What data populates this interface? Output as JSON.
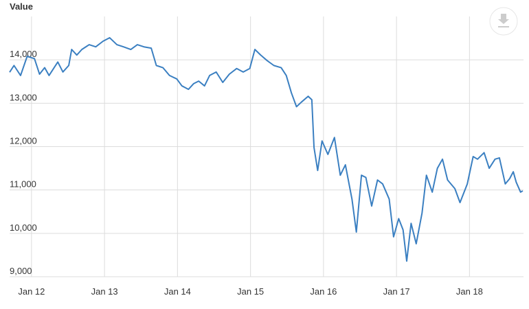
{
  "chart_data": {
    "type": "line",
    "title": "Value",
    "x": [
      2011.7,
      2011.76,
      2011.85,
      2011.94,
      2012.04,
      2012.11,
      2012.18,
      2012.24,
      2012.36,
      2012.43,
      2012.51,
      2012.55,
      2012.62,
      2012.69,
      2012.79,
      2012.88,
      2012.98,
      2013.07,
      2013.17,
      2013.26,
      2013.36,
      2013.45,
      2013.54,
      2013.64,
      2013.71,
      2013.8,
      2013.89,
      2013.99,
      2014.06,
      2014.15,
      2014.22,
      2014.29,
      2014.37,
      2014.44,
      2014.53,
      2014.62,
      2014.71,
      2014.81,
      2014.9,
      2014.99,
      2015.06,
      2015.14,
      2015.23,
      2015.32,
      2015.42,
      2015.49,
      2015.56,
      2015.63,
      2015.7,
      2015.79,
      2015.84,
      2015.87,
      2015.92,
      2015.98,
      2016.06,
      2016.15,
      2016.23,
      2016.3,
      2016.39,
      2016.45,
      2016.52,
      2016.58,
      2016.66,
      2016.74,
      2016.81,
      2016.9,
      2016.96,
      2017.03,
      2017.09,
      2017.14,
      2017.2,
      2017.27,
      2017.35,
      2017.41,
      2017.49,
      2017.56,
      2017.63,
      2017.7,
      2017.8,
      2017.87,
      2017.97,
      2018.05,
      2018.11,
      2018.2,
      2018.27,
      2018.35,
      2018.41,
      2018.49,
      2018.55,
      2018.6,
      2018.64,
      2018.7,
      2018.73
    ],
    "series": [
      {
        "name": "Value",
        "color": "#3a7fc1",
        "values": [
          13715,
          13870,
          13640,
          14080,
          14030,
          13670,
          13820,
          13640,
          13950,
          13720,
          13870,
          14240,
          14110,
          14240,
          14350,
          14300,
          14430,
          14510,
          14350,
          14300,
          14240,
          14350,
          14300,
          14270,
          13870,
          13820,
          13640,
          13560,
          13400,
          13320,
          13450,
          13510,
          13400,
          13640,
          13720,
          13480,
          13670,
          13800,
          13720,
          13800,
          14240,
          14110,
          13980,
          13870,
          13820,
          13640,
          13240,
          12920,
          13030,
          13160,
          13080,
          11980,
          11450,
          12130,
          11820,
          12210,
          11340,
          11580,
          10790,
          10030,
          11340,
          11290,
          10630,
          11230,
          11140,
          10790,
          9920,
          10340,
          10080,
          9360,
          10230,
          9760,
          10470,
          11340,
          10950,
          11500,
          11710,
          11230,
          11030,
          10710,
          11140,
          11770,
          11710,
          11860,
          11500,
          11710,
          11740,
          11140,
          11260,
          11420,
          11180,
          10950,
          10980
        ]
      }
    ],
    "xlim": [
      2011.7,
      2018.74
    ],
    "xticks": [
      {
        "value": 2012,
        "label": "Jan 12"
      },
      {
        "value": 2013,
        "label": "Jan 13"
      },
      {
        "value": 2014,
        "label": "Jan 14"
      },
      {
        "value": 2015,
        "label": "Jan 15"
      },
      {
        "value": 2016,
        "label": "Jan 16"
      },
      {
        "value": 2017,
        "label": "Jan 17"
      },
      {
        "value": 2018,
        "label": "Jan 18"
      }
    ],
    "ylim": [
      9000,
      15000
    ],
    "yticks": [
      {
        "value": 9000,
        "label": "9,000"
      },
      {
        "value": 10000,
        "label": "10,000"
      },
      {
        "value": 11000,
        "label": "11,000"
      },
      {
        "value": 12000,
        "label": "12,000"
      },
      {
        "value": 13000,
        "label": "13,000"
      },
      {
        "value": 14000,
        "label": "14,000"
      }
    ],
    "grid": true
  }
}
